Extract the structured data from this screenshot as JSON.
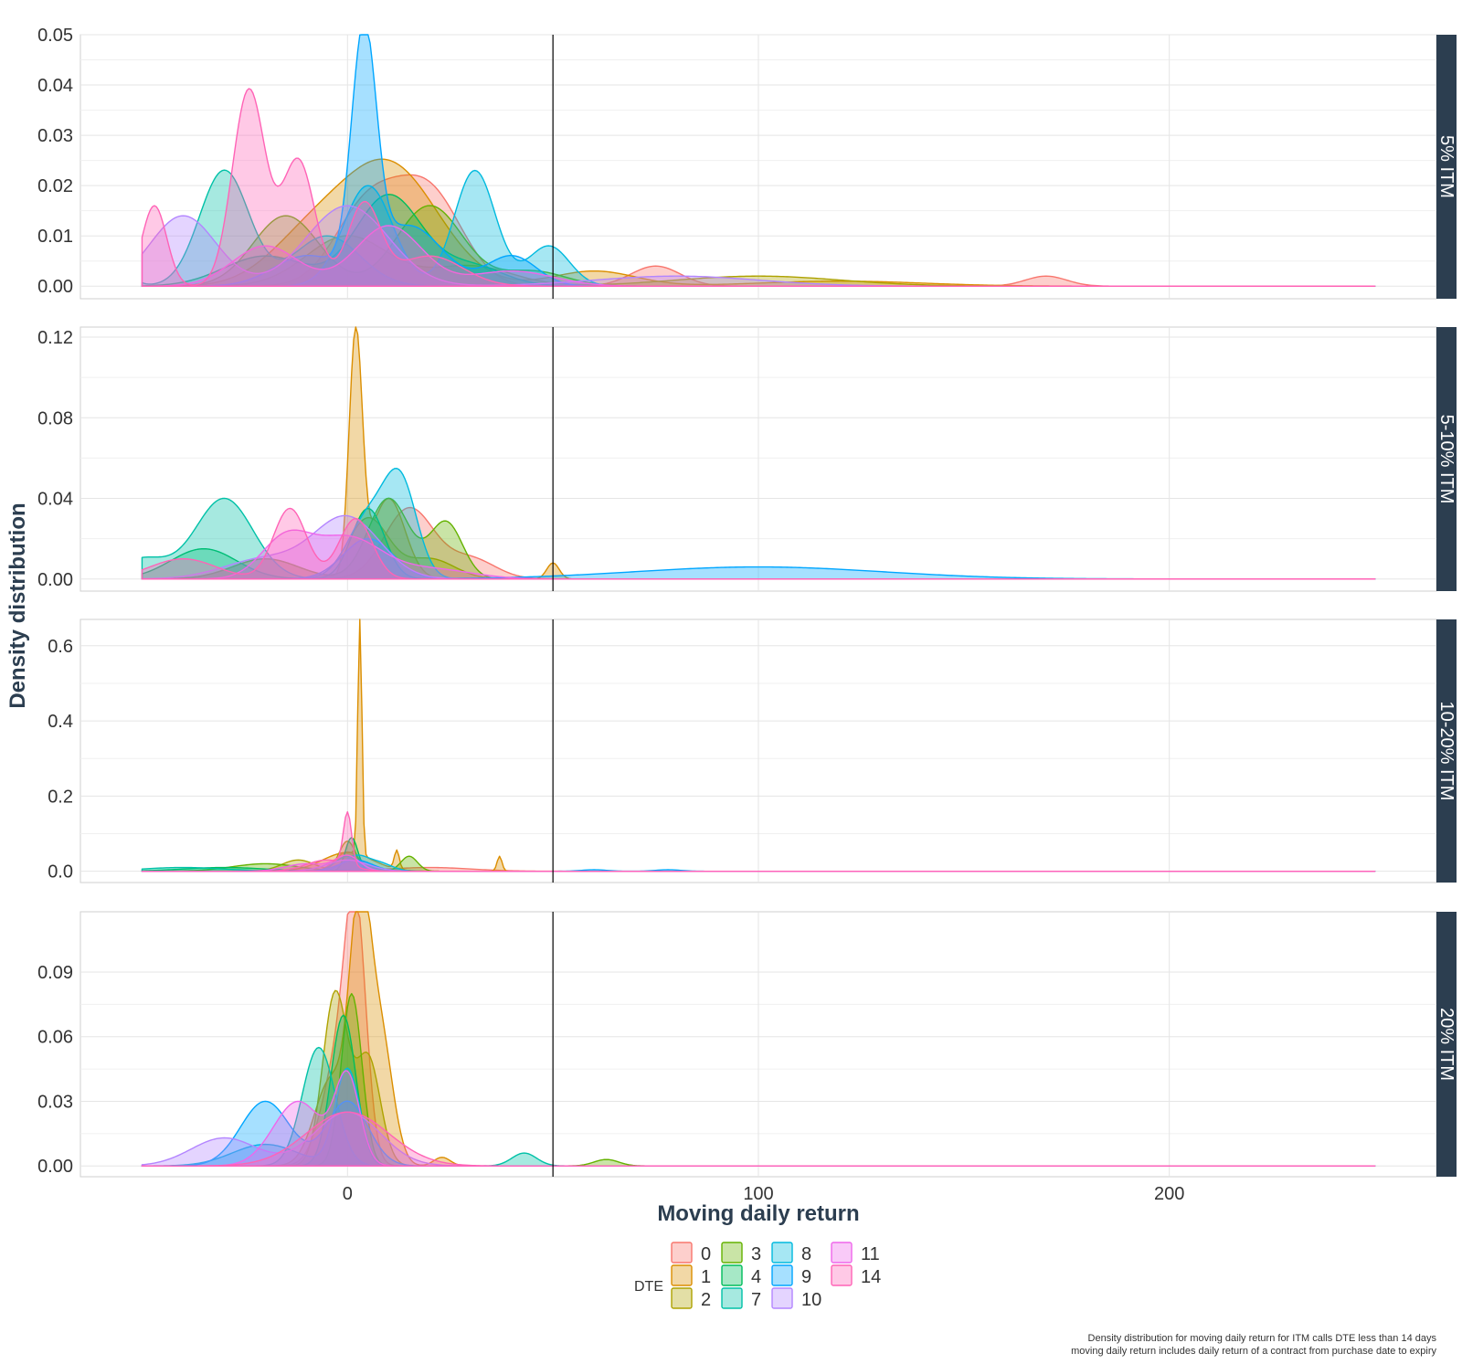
{
  "colors": {
    "0": "#F8766D",
    "1": "#DB8E00",
    "2": "#AEA200",
    "3": "#64B200",
    "4": "#00BD5C",
    "7": "#00C1A7",
    "8": "#00BADE",
    "9": "#00A6FF",
    "10": "#B385FF",
    "11": "#EF67EB",
    "14": "#FF63B6",
    "strip": "#2c3e50",
    "vline": "#000000",
    "grid": "#e5e5e5"
  },
  "chart_data": {
    "type": "area",
    "subtype": "density (faceted, filled, overlapping)",
    "xlabel": "Moving daily return",
    "ylabel": "Density distribution",
    "xlim": [
      -65,
      265
    ],
    "x_ticks": [
      0,
      100,
      200
    ],
    "vline_x": 50,
    "grid": true,
    "legend": {
      "title": "DTE",
      "position": "bottom",
      "entries": [
        "0",
        "1",
        "2",
        "3",
        "4",
        "7",
        "8",
        "9",
        "10",
        "11",
        "14"
      ]
    },
    "caption": [
      "Density distribution for moving daily return for ITM calls DTE less than 14 days",
      "moving daily return includes daily return of a contract from purchase date to expiry"
    ],
    "facets": [
      {
        "strip": "5% ITM",
        "ylim": [
          -0.0025,
          0.05
        ],
        "y_ticks": [
          0.0,
          0.01,
          0.02,
          0.03,
          0.04,
          0.05
        ],
        "y_tick_labels": [
          "0.00",
          "0.01",
          "0.02",
          "0.03",
          "0.04",
          "0.05"
        ],
        "series": [
          {
            "name": "0",
            "peaks": [
              [
                5,
                0.016,
                8
              ],
              [
                20,
                0.018,
                8
              ],
              [
                75,
                0.004,
                6
              ],
              [
                170,
                0.002,
                5
              ]
            ]
          },
          {
            "name": "1",
            "peaks": [
              [
                10,
                0.024,
                12
              ],
              [
                -10,
                0.008,
                10
              ],
              [
                60,
                0.003,
                10
              ],
              [
                120,
                0.001,
                20
              ]
            ]
          },
          {
            "name": "2",
            "peaks": [
              [
                0,
                0.01,
                10
              ],
              [
                30,
                0.004,
                10
              ],
              [
                100,
                0.002,
                20
              ]
            ]
          },
          {
            "name": "3",
            "peaks": [
              [
                -15,
                0.014,
                8
              ],
              [
                20,
                0.016,
                8
              ],
              [
                45,
                0.003,
                8
              ]
            ]
          },
          {
            "name": "4",
            "peaks": [
              [
                -20,
                0.006,
                10
              ],
              [
                10,
                0.018,
                8
              ],
              [
                30,
                0.004,
                8
              ]
            ]
          },
          {
            "name": "7",
            "peaks": [
              [
                -60,
                0.014,
                4
              ],
              [
                -30,
                0.023,
                6
              ],
              [
                -5,
                0.01,
                8
              ]
            ]
          },
          {
            "name": "8",
            "peaks": [
              [
                5,
                0.02,
                6
              ],
              [
                31,
                0.023,
                5
              ],
              [
                49,
                0.008,
                5
              ]
            ]
          },
          {
            "name": "9",
            "peaks": [
              [
                4,
                0.047,
                3
              ],
              [
                15,
                0.012,
                8
              ],
              [
                -10,
                0.006,
                8
              ],
              [
                40,
                0.006,
                6
              ]
            ]
          },
          {
            "name": "10",
            "peaks": [
              [
                -40,
                0.014,
                8
              ],
              [
                0,
                0.016,
                10
              ],
              [
                80,
                0.002,
                20
              ]
            ]
          },
          {
            "name": "11",
            "peaks": [
              [
                -20,
                0.008,
                8
              ],
              [
                10,
                0.012,
                8
              ],
              [
                40,
                0.003,
                10
              ]
            ]
          },
          {
            "name": "14",
            "peaks": [
              [
                -47,
                0.016,
                3
              ],
              [
                -24,
                0.039,
                4
              ],
              [
                -12,
                0.025,
                4
              ],
              [
                4,
                0.016,
                4
              ],
              [
                20,
                0.006,
                8
              ]
            ]
          }
        ]
      },
      {
        "strip": "5-10% ITM",
        "ylim": [
          -0.006,
          0.125
        ],
        "y_ticks": [
          0.0,
          0.04,
          0.08,
          0.12
        ],
        "y_tick_labels": [
          "0.00",
          "0.04",
          "0.08",
          "0.12"
        ],
        "series": [
          {
            "name": "0",
            "peaks": [
              [
                15,
                0.035,
                6
              ],
              [
                30,
                0.01,
                6
              ]
            ]
          },
          {
            "name": "1",
            "peaks": [
              [
                2,
                0.12,
                1.6
              ],
              [
                10,
                0.04,
                4
              ],
              [
                -20,
                0.01,
                8
              ],
              [
                50,
                0.008,
                1.5
              ]
            ]
          },
          {
            "name": "2",
            "peaks": [
              [
                5,
                0.03,
                5
              ],
              [
                20,
                0.01,
                6
              ]
            ]
          },
          {
            "name": "3",
            "peaks": [
              [
                10,
                0.04,
                5
              ],
              [
                24,
                0.028,
                4
              ],
              [
                -20,
                0.01,
                8
              ]
            ]
          },
          {
            "name": "4",
            "peaks": [
              [
                5,
                0.035,
                4
              ],
              [
                -35,
                0.015,
                8
              ]
            ]
          },
          {
            "name": "7",
            "peaks": [
              [
                -30,
                0.04,
                7
              ],
              [
                -50,
                0.01,
                6
              ]
            ]
          },
          {
            "name": "8",
            "peaks": [
              [
                13,
                0.045,
                4
              ],
              [
                5,
                0.03,
                5
              ]
            ]
          },
          {
            "name": "9",
            "peaks": [
              [
                100,
                0.006,
                30
              ],
              [
                5,
                0.02,
                6
              ]
            ]
          },
          {
            "name": "10",
            "peaks": [
              [
                0,
                0.03,
                8
              ],
              [
                -20,
                0.01,
                10
              ]
            ]
          },
          {
            "name": "11",
            "peaks": [
              [
                0,
                0.02,
                8
              ],
              [
                -15,
                0.02,
                6
              ],
              [
                20,
                0.005,
                10
              ]
            ]
          },
          {
            "name": "14",
            "peaks": [
              [
                -14,
                0.035,
                4
              ],
              [
                2,
                0.03,
                4
              ],
              [
                -40,
                0.01,
                8
              ]
            ]
          }
        ]
      },
      {
        "strip": "10-20% ITM",
        "ylim": [
          -0.03,
          0.67
        ],
        "y_ticks": [
          0.0,
          0.2,
          0.4,
          0.6
        ],
        "y_tick_labels": [
          "0.0",
          "0.2",
          "0.4",
          "0.6"
        ],
        "series": [
          {
            "name": "0",
            "peaks": [
              [
                0,
                0.05,
                3
              ],
              [
                20,
                0.01,
                10
              ]
            ]
          },
          {
            "name": "1",
            "peaks": [
              [
                3,
                0.64,
                0.5
              ],
              [
                12,
                0.05,
                0.6
              ],
              [
                37,
                0.04,
                0.6
              ],
              [
                0,
                0.05,
                6
              ]
            ]
          },
          {
            "name": "2",
            "peaks": [
              [
                -12,
                0.03,
                4
              ],
              [
                0,
                0.08,
                2
              ]
            ]
          },
          {
            "name": "3",
            "peaks": [
              [
                15,
                0.04,
                2
              ],
              [
                -20,
                0.02,
                8
              ]
            ]
          },
          {
            "name": "4",
            "peaks": [
              [
                1,
                0.09,
                1.5
              ],
              [
                -30,
                0.01,
                10
              ]
            ]
          },
          {
            "name": "7",
            "peaks": [
              [
                0,
                0.04,
                3
              ],
              [
                -40,
                0.01,
                10
              ]
            ]
          },
          {
            "name": "8",
            "peaks": [
              [
                2,
                0.04,
                3
              ],
              [
                8,
                0.02,
                3
              ]
            ]
          },
          {
            "name": "9",
            "peaks": [
              [
                2,
                0.03,
                4
              ],
              [
                60,
                0.004,
                3
              ],
              [
                78,
                0.004,
                3
              ]
            ]
          },
          {
            "name": "10",
            "peaks": [
              [
                0,
                0.03,
                5
              ]
            ]
          },
          {
            "name": "11",
            "peaks": [
              [
                0,
                0.04,
                3
              ],
              [
                -10,
                0.02,
                5
              ]
            ]
          },
          {
            "name": "14",
            "peaks": [
              [
                0,
                0.14,
                1
              ],
              [
                -5,
                0.03,
                5
              ]
            ]
          }
        ]
      },
      {
        "strip": "20% ITM",
        "ylim": [
          -0.005,
          0.118
        ],
        "y_ticks": [
          0.0,
          0.03,
          0.06,
          0.09
        ],
        "y_tick_labels": [
          "0.00",
          "0.03",
          "0.06",
          "0.09"
        ],
        "series": [
          {
            "name": "0",
            "peaks": [
              [
                2,
                0.1,
                2.5
              ],
              [
                -2,
                0.05,
                4
              ]
            ]
          },
          {
            "name": "1",
            "peaks": [
              [
                3,
                0.112,
                2.5
              ],
              [
                8,
                0.06,
                3
              ],
              [
                -4,
                0.04,
                4
              ],
              [
                23,
                0.004,
                2
              ]
            ]
          },
          {
            "name": "2",
            "peaks": [
              [
                -3,
                0.08,
                3
              ],
              [
                5,
                0.05,
                3
              ]
            ]
          },
          {
            "name": "3",
            "peaks": [
              [
                1,
                0.08,
                2.5
              ],
              [
                63,
                0.003,
                3
              ]
            ]
          },
          {
            "name": "4",
            "peaks": [
              [
                -1,
                0.07,
                3
              ]
            ]
          },
          {
            "name": "7",
            "peaks": [
              [
                -7,
                0.055,
                4
              ],
              [
                43,
                0.006,
                3
              ]
            ]
          },
          {
            "name": "8",
            "peaks": [
              [
                0,
                0.045,
                3
              ],
              [
                -20,
                0.01,
                8
              ]
            ]
          },
          {
            "name": "9",
            "peaks": [
              [
                -20,
                0.03,
                6
              ],
              [
                0,
                0.03,
                5
              ]
            ]
          },
          {
            "name": "10",
            "peaks": [
              [
                -30,
                0.013,
                8
              ],
              [
                0,
                0.025,
                8
              ]
            ]
          },
          {
            "name": "11",
            "peaks": [
              [
                -12,
                0.03,
                6
              ],
              [
                0,
                0.04,
                3
              ]
            ]
          },
          {
            "name": "14",
            "peaks": [
              [
                0,
                0.025,
                10
              ]
            ]
          }
        ]
      }
    ]
  }
}
